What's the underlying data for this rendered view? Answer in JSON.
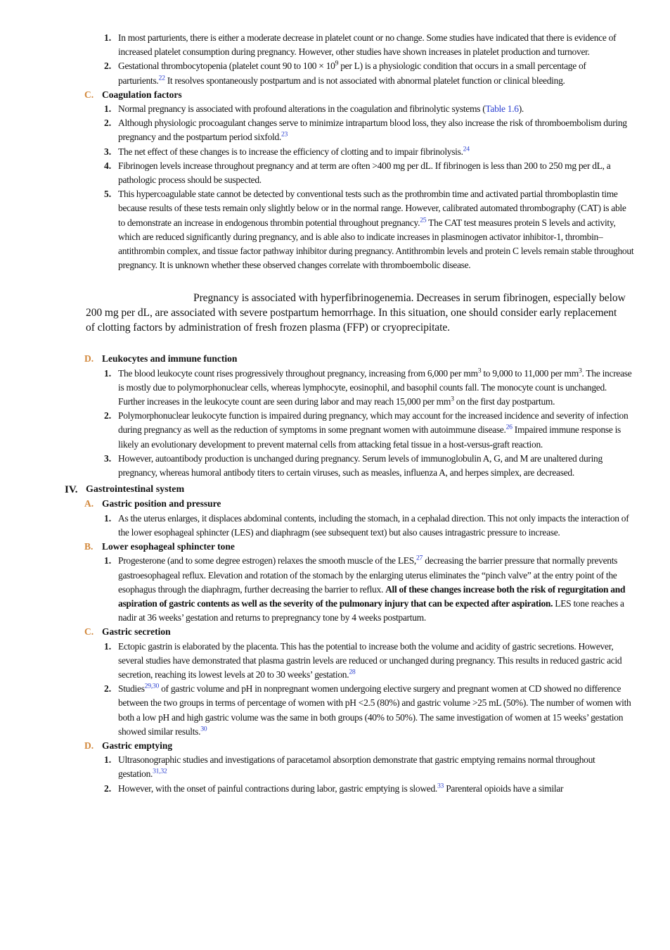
{
  "content": [
    {
      "items": [
        {
          "num": "1.",
          "segs": [
            "In most parturients, there is either a moderate decrease in platelet count or no change. Some studies have indicated that there is evidence of increased platelet consumption during pregnancy. However, other studies have shown increases in platelet production and turnover."
          ]
        },
        {
          "num": "2.",
          "segs": [
            "Gestational thrombocytopenia (platelet count 90 to 100 × 10",
            {
              "sup": "9"
            },
            " per L) is a physiologic condition that occurs in a small percentage of parturients.",
            {
              "ref": "22"
            },
            " It resolves spontaneously postpartum and is not associated with abnormal platelet function or clinical bleeding."
          ]
        }
      ]
    },
    {
      "letter": "C.",
      "heading": "Coagulation factors",
      "items": [
        {
          "num": "1.",
          "segs": [
            "Normal pregnancy is associated with profound alterations in the coagulation and fibrinolytic systems (",
            {
              "link": "Table 1.6"
            },
            ")."
          ]
        },
        {
          "num": "2.",
          "segs": [
            "Although physiologic procoagulant changes serve to minimize intrapartum blood loss, they also increase the risk of thromboembolism during pregnancy and the postpartum period sixfold.",
            {
              "ref": "23"
            }
          ]
        },
        {
          "num": "3.",
          "segs": [
            "The net effect of these changes is to increase the efficiency of clotting and to impair fibrinolysis.",
            {
              "ref": "24"
            }
          ]
        },
        {
          "num": "4.",
          "segs": [
            "Fibrinogen levels increase throughout pregnancy and at term are often >400 mg per dL. If fibrinogen is less than 200 to 250 mg per dL, a pathologic process should be suspected."
          ]
        },
        {
          "num": "5.",
          "segs": [
            "This hypercoagulable state cannot be detected by conventional tests such as the prothrombin time and activated partial thromboplastin time because results of these tests remain only slightly below or in the normal range. However, calibrated automated thrombography (CAT) is able to demonstrate an increase in endogenous thrombin potential throughout pregnancy.",
            {
              "ref": "25"
            },
            " The CAT test measures protein S levels and activity, which are reduced significantly during pregnancy, and is able also to indicate increases in plasminogen activator inhibitor-1, thrombin–antithrombin complex, and tissue factor pathway inhibitor during pregnancy. Antithrombin levels and protein C levels remain stable throughout pregnancy. It is unknown whether these observed changes correlate with thromboembolic disease."
          ]
        }
      ]
    },
    {
      "callout": "Pregnancy is associated with hyperfibrinogenemia. Decreases in serum fibrinogen, especially below 200 mg per dL, are associated with severe postpartum hemorrhage. In this situation, one should consider early replacement of clotting factors by administration of fresh frozen plasma (FFP) or cryoprecipitate."
    },
    {
      "letter": "D.",
      "heading": "Leukocytes and immune function",
      "items": [
        {
          "num": "1.",
          "segs": [
            "The blood leukocyte count rises progressively throughout pregnancy, increasing from 6,000 per mm",
            {
              "sup": "3"
            },
            " to 9,000 to 11,000 per mm",
            {
              "sup": "3"
            },
            ". The increase is mostly due to polymorphonuclear cells, whereas lymphocyte, eosinophil, and basophil counts fall. The monocyte count is unchanged. Further increases in the leukocyte count are seen during labor and may reach 15,000 per mm",
            {
              "sup": "3"
            },
            " on the first day postpartum."
          ]
        },
        {
          "num": "2.",
          "segs": [
            "Polymorphonuclear leukocyte function is impaired during pregnancy, which may account for the increased incidence and severity of infection during pregnancy as well as the reduction of symptoms in some pregnant women with autoimmune disease.",
            {
              "ref": "26"
            },
            " Impaired immune response is likely an evolutionary development to prevent maternal cells from attacking fetal tissue in a host-versus-graft reaction."
          ]
        },
        {
          "num": "3.",
          "segs": [
            "However, autoantibody production is unchanged during pregnancy. Serum levels of immunoglobulin A, G, and M are unaltered during pregnancy, whereas humoral antibody titers to certain viruses, such as measles, influenza A, and herpes simplex, are decreased."
          ]
        }
      ]
    },
    {
      "roman": "IV.",
      "heading": "Gastrointestinal system"
    },
    {
      "letter": "A.",
      "heading": "Gastric position and pressure",
      "items": [
        {
          "num": "1.",
          "segs": [
            "As the uterus enlarges, it displaces abdominal contents, including the stomach, in a cephalad direction. This not only impacts the interaction of the lower esophageal sphincter (LES) and diaphragm (see subsequent text) but also causes intragastric pressure to increase."
          ]
        }
      ]
    },
    {
      "letter": "B.",
      "heading": "Lower esophageal sphincter tone",
      "items": [
        {
          "num": "1.",
          "segs": [
            "Progesterone (and to some degree estrogen) relaxes the smooth muscle of the LES,",
            {
              "ref": "27"
            },
            " decreasing the barrier pressure that normally prevents gastroesophageal reflux. Elevation and rotation of the stomach by the enlarging uterus eliminates the “pinch valve” at the entry point of the esophagus through the diaphragm, further decreasing the barrier to reflux. ",
            {
              "bold": "All of these changes increase both the risk of regurgitation and aspiration of gastric contents as well as the severity of the pulmonary injury that can be expected after aspiration."
            },
            " LES tone reaches a nadir at 36 weeks’ gestation and returns to prepregnancy tone by 4 weeks postpartum."
          ]
        }
      ]
    },
    {
      "letter": "C.",
      "heading": "Gastric secretion",
      "items": [
        {
          "num": "1.",
          "segs": [
            "Ectopic gastrin is elaborated by the placenta. This has the potential to increase both the volume and acidity of gastric secretions. However, several studies have demonstrated that plasma gastrin levels are reduced or unchanged during pregnancy. This results in reduced gastric acid secretion, reaching its lowest levels at 20 to 30 weeks’ gestation.",
            {
              "ref": "28"
            }
          ]
        },
        {
          "num": "2.",
          "segs": [
            "Studies",
            {
              "ref": "29,30"
            },
            " of gastric volume and pH in nonpregnant women undergoing elective surgery and pregnant women at CD showed no difference between the two groups in terms of percentage of women with pH <2.5 (80%) and gastric volume >25 mL (50%). The number of women with both a low pH and high gastric volume was the same in both groups (40% to 50%). The same investigation of women at 15 weeks’ gestation showed similar results.",
            {
              "ref": "30"
            }
          ]
        }
      ]
    },
    {
      "letter": "D.",
      "heading": "Gastric emptying",
      "items": [
        {
          "num": "1.",
          "segs": [
            "Ultrasonographic studies and investigations of paracetamol absorption demonstrate that gastric emptying remains normal throughout gestation.",
            {
              "ref": "31,32"
            }
          ]
        },
        {
          "num": "2.",
          "segs": [
            "However, with the onset of painful contractions during labor, gastric emptying is slowed.",
            {
              "ref": "33"
            },
            " Parenteral opioids have a similar"
          ]
        }
      ]
    }
  ]
}
